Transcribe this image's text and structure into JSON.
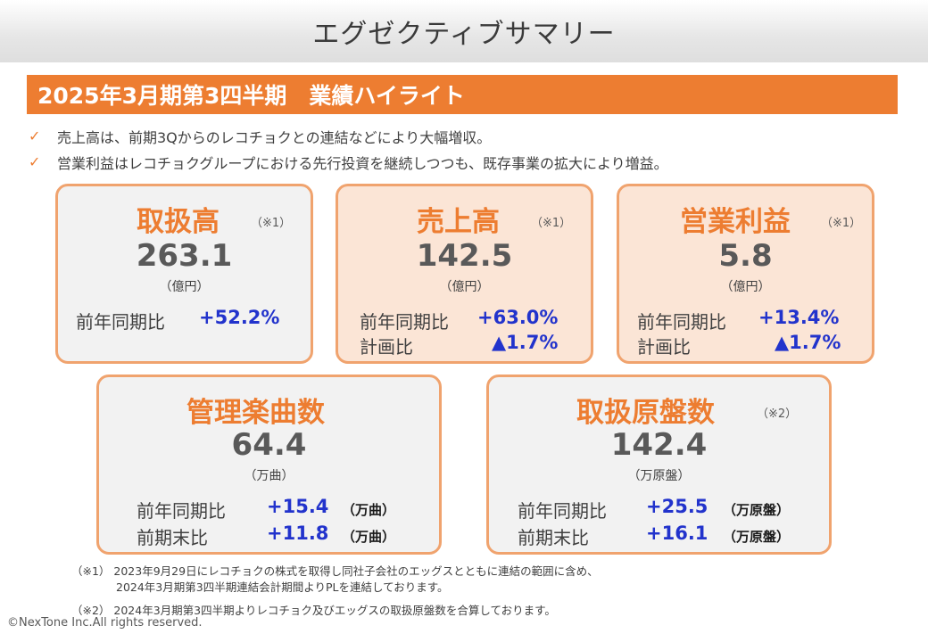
{
  "page_title": "エグゼクティブサマリー",
  "section_title": "2025年3月期第3四半期　業績ハイライト",
  "bullets": [
    "売上高は、前期3Qからのレコチョクとの連結などにより大幅増収。",
    "営業利益はレコチョクグループにおける先行投資を継続しつつも、既存事業の拡大により増益。"
  ],
  "check_glyph": "✓",
  "cards": {
    "handling": {
      "title": "取扱高",
      "note": "（※1）",
      "value": "263.1",
      "unit": "（億円）",
      "yoy_label": "前年同期比",
      "yoy_value": "+52.2%"
    },
    "revenue": {
      "title": "売上高",
      "note": "（※1）",
      "value": "142.5",
      "unit": "（億円）",
      "yoy_label": "前年同期比",
      "yoy_value": "+63.0%",
      "plan_label": "計画比",
      "plan_value": "▲1.7%"
    },
    "operating_profit": {
      "title": "営業利益",
      "note": "（※1）",
      "value": "5.8",
      "unit": "（億円）",
      "yoy_label": "前年同期比",
      "yoy_value": "+13.4%",
      "plan_label": "計画比",
      "plan_value": "▲1.7%"
    },
    "managed_songs": {
      "title": "管理楽曲数",
      "value": "64.4",
      "unit": "（万曲）",
      "yoy_label": "前年同期比",
      "yoy_value": "+15.4",
      "yoy_unit": "（万曲）",
      "prev_label": "前期末比",
      "prev_value": "+11.8",
      "prev_unit": "（万曲）"
    },
    "masters": {
      "title": "取扱原盤数",
      "note": "（※2）",
      "value": "142.4",
      "unit": "（万原盤）",
      "yoy_label": "前年同期比",
      "yoy_value": "+25.5",
      "yoy_unit": "（万原盤）",
      "prev_label": "前期末比",
      "prev_value": "+16.1",
      "prev_unit": "（万原盤）"
    }
  },
  "footnotes": {
    "note1_line1": "（※1）  2023年9月29日にレコチョクの株式を取得し同社子会社のエッグスとともに連結の範囲に含め、",
    "note1_line2": "2024年3月期第3四半期連結会計期間よりPLを連結しております。",
    "note2": "（※2）  2024年3月期第3四半期よりレコチョク及びエッグスの取扱原盤数を合算しております。"
  },
  "copyright": "©NexTone Inc.All rights reserved.",
  "colors": {
    "accent": "#ed7d31",
    "card_border": "#f0a36e",
    "card_gray": "#f2f2f2",
    "card_peach": "#fbe5d6",
    "positive_blue": "#2233cc"
  }
}
